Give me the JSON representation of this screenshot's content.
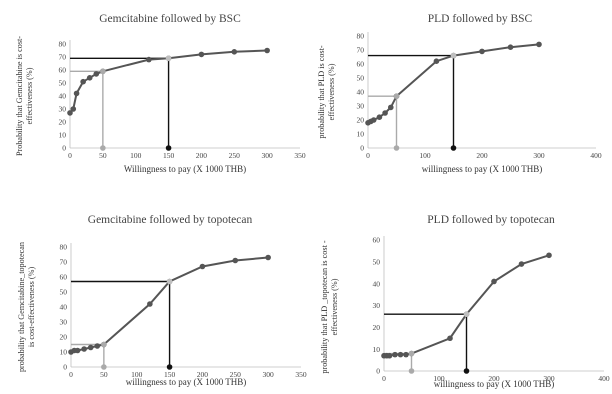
{
  "chart_data": [
    {
      "type": "line",
      "title": "Gemcitabine followed by BSC",
      "xlabel": "Willingness to pay (X 1000 THB)",
      "ylabel": [
        "Probability that Gemcitabine is cost-",
        "effectiveness (%)"
      ],
      "xlim": [
        0,
        350
      ],
      "ylim": [
        0,
        80
      ],
      "xticks": [
        0,
        50,
        100,
        150,
        200,
        250,
        300,
        350
      ],
      "yticks": [
        0,
        10,
        20,
        30,
        40,
        50,
        60,
        70,
        80
      ],
      "x": [
        0,
        5,
        10,
        20,
        30,
        40,
        50,
        120,
        150,
        200,
        250,
        300
      ],
      "y": [
        27,
        30,
        42,
        51,
        54,
        57,
        59,
        68,
        69,
        72,
        74,
        75
      ],
      "reference_lines": [
        {
          "x": 50,
          "y": 59,
          "color": "#aaaaaa"
        },
        {
          "x": 150,
          "y": 69,
          "color": "#111111"
        }
      ]
    },
    {
      "type": "line",
      "title": "PLD followed by BSC",
      "xlabel": "willingness to pay (X 1000 THB)",
      "ylabel": [
        "probability that PLD is cost-",
        "effectiveness (%)"
      ],
      "xlim": [
        0,
        400
      ],
      "ylim": [
        0,
        80
      ],
      "xticks": [
        0,
        100,
        200,
        300,
        400
      ],
      "yticks": [
        0,
        10,
        20,
        30,
        40,
        50,
        60,
        70,
        80
      ],
      "x": [
        0,
        5,
        10,
        20,
        30,
        40,
        50,
        120,
        150,
        200,
        250,
        300
      ],
      "y": [
        18,
        19,
        20,
        22,
        25,
        29,
        37,
        62,
        66,
        69,
        72,
        74
      ],
      "reference_lines": [
        {
          "x": 50,
          "y": 37,
          "color": "#aaaaaa"
        },
        {
          "x": 150,
          "y": 66,
          "color": "#111111"
        }
      ]
    },
    {
      "type": "line",
      "title": "Gemcitabine followed by topotecan",
      "xlabel": "willingness to pay (X 1000 THB)",
      "ylabel": [
        "probability that Gemcitabine_topotecan",
        "is cost-effectiveness (%)"
      ],
      "xlim": [
        0,
        350
      ],
      "ylim": [
        0,
        80
      ],
      "xticks": [
        0,
        50,
        100,
        150,
        200,
        250,
        300,
        350
      ],
      "yticks": [
        0,
        10,
        20,
        30,
        40,
        50,
        60,
        70,
        80
      ],
      "x": [
        0,
        5,
        10,
        20,
        30,
        40,
        50,
        120,
        150,
        200,
        250,
        300
      ],
      "y": [
        10,
        11,
        11,
        12,
        13,
        14,
        15,
        42,
        57,
        67,
        71,
        73
      ],
      "reference_lines": [
        {
          "x": 50,
          "y": 15,
          "color": "#aaaaaa"
        },
        {
          "x": 150,
          "y": 57,
          "color": "#111111"
        }
      ]
    },
    {
      "type": "line",
      "title": "PLD followed by topotecan",
      "xlabel": "willingness to pay (X 1000 THB)",
      "ylabel": [
        "probability that PLD _topotecan is cost -",
        "effectiveness (%)"
      ],
      "xlim": [
        0,
        400
      ],
      "ylim": [
        0,
        60
      ],
      "xticks": [
        0,
        100,
        200,
        300,
        400
      ],
      "yticks": [
        0,
        10,
        20,
        30,
        40,
        50,
        60
      ],
      "x": [
        0,
        5,
        10,
        20,
        30,
        40,
        50,
        120,
        150,
        200,
        250,
        300
      ],
      "y": [
        7,
        7,
        7,
        7.5,
        7.5,
        7.5,
        8,
        15,
        26,
        41,
        49,
        53
      ],
      "reference_lines": [
        {
          "x": 50,
          "y": 8,
          "color": "#aaaaaa"
        },
        {
          "x": 150,
          "y": 26,
          "color": "#111111"
        }
      ]
    }
  ]
}
